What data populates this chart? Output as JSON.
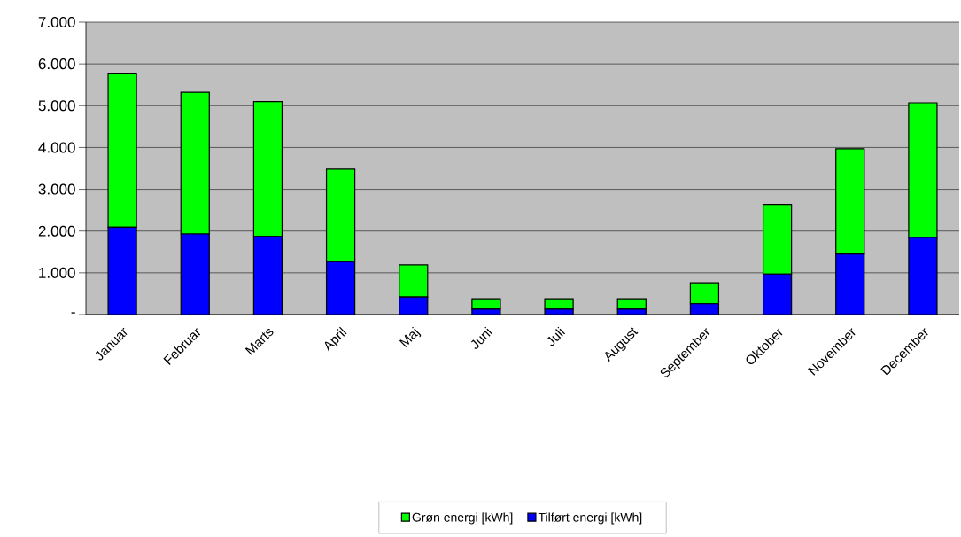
{
  "chart_data": {
    "type": "bar",
    "stacked": true,
    "categories": [
      "Januar",
      "Februar",
      "Marts",
      "April",
      "Maj",
      "Juni",
      "Juli",
      "August",
      "September",
      "Oktober",
      "November",
      "December"
    ],
    "series": [
      {
        "name": "Tilført energi [kWh]",
        "color": "#0000ff",
        "values": [
          2090,
          1930,
          1870,
          1270,
          420,
          130,
          130,
          130,
          260,
          970,
          1450,
          1850
        ]
      },
      {
        "name": "Grøn energi [kWh]",
        "color": "#00ff00",
        "values": [
          3690,
          3390,
          3230,
          2210,
          770,
          250,
          250,
          250,
          500,
          1670,
          2520,
          3220
        ]
      }
    ],
    "ylim": [
      0,
      7000
    ],
    "yticks": [
      {
        "value": 0,
        "label": "-"
      },
      {
        "value": 1000,
        "label": "1.000"
      },
      {
        "value": 2000,
        "label": "2.000"
      },
      {
        "value": 3000,
        "label": "3.000"
      },
      {
        "value": 4000,
        "label": "4.000"
      },
      {
        "value": 5000,
        "label": "5.000"
      },
      {
        "value": 6000,
        "label": "6.000"
      },
      {
        "value": 7000,
        "label": "7.000"
      }
    ],
    "grid": "y",
    "legend": "bottom"
  }
}
